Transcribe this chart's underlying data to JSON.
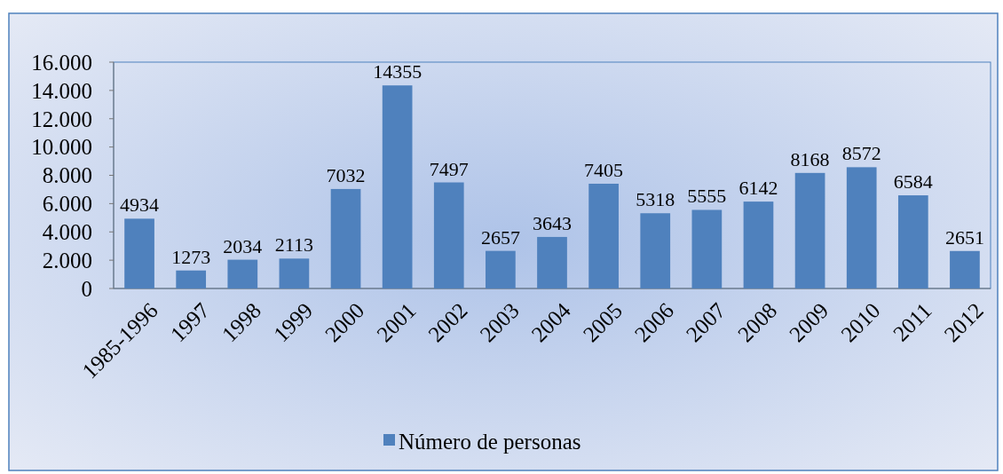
{
  "chart_data": {
    "type": "bar",
    "categories": [
      "1985-1996",
      "1997",
      "1998",
      "1999",
      "2000",
      "2001",
      "2002",
      "2003",
      "2004",
      "2005",
      "2006",
      "2007",
      "2008",
      "2009",
      "2010",
      "2011",
      "2012"
    ],
    "series": [
      {
        "name": "Número de personas",
        "color": "#4f81bd",
        "values": [
          4934,
          1273,
          2034,
          2113,
          7032,
          14355,
          7497,
          2657,
          3643,
          7405,
          5318,
          5555,
          6142,
          8168,
          8572,
          6584,
          2651
        ]
      }
    ],
    "ylim": [
      0,
      16000
    ],
    "yticks": [
      0,
      {
        "value": 2000,
        "label": "2.000"
      },
      {
        "value": 4000,
        "label": "4.000"
      },
      {
        "value": 6000,
        "label": "6.000"
      },
      {
        "value": 8000,
        "label": "8.000"
      },
      {
        "value": 10000,
        "label": "10.000"
      },
      {
        "value": 12000,
        "label": "12.000"
      },
      {
        "value": 14000,
        "label": "14.000"
      },
      {
        "value": 16000,
        "label": "16.000"
      }
    ],
    "data_labels": true,
    "legend": "bottom"
  }
}
